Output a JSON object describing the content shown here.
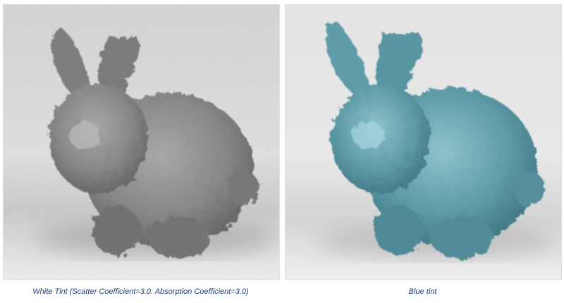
{
  "figures": [
    {
      "caption": "White Tint (Scatter Coefficient=3.0. Absorption Coefficient=3.0)",
      "tint_color": "#8a8a8a",
      "tint_highlight": "#bdbdbd",
      "tint_shadow": "#5e5e5e"
    },
    {
      "caption": "Blue tint",
      "tint_color": "#5c9aa6",
      "tint_highlight": "#8fc3cc",
      "tint_shadow": "#3f7480"
    }
  ],
  "colors": {
    "background_top": "#d6d6d6",
    "background_bottom": "#e9e9e9",
    "caption_text": "#1f3f77"
  }
}
